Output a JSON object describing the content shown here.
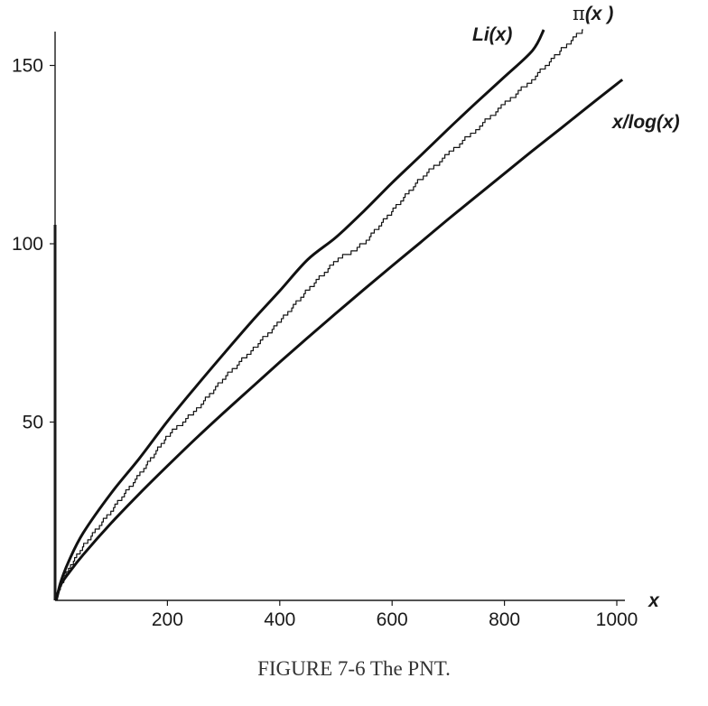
{
  "caption": "FIGURE 7-6  The PNT.",
  "chart_data": {
    "type": "line",
    "title": "",
    "xlabel": "x",
    "ylabel": "",
    "xlim": [
      0,
      1000
    ],
    "ylim": [
      0,
      160
    ],
    "x_ticks": [
      200,
      400,
      600,
      800,
      1000
    ],
    "x_tick_labels": [
      "200",
      "400",
      "600",
      "800",
      "1000"
    ],
    "y_ticks": [
      50,
      100,
      150
    ],
    "y_tick_labels": [
      "50",
      "100",
      "150"
    ],
    "series": [
      {
        "name": "Li(x)",
        "label_text": "Li(x)",
        "style": "smooth",
        "x": [
          2,
          10,
          25,
          50,
          100,
          150,
          200,
          250,
          300,
          350,
          400,
          450,
          500,
          550,
          600,
          650,
          700,
          750,
          800,
          850,
          870
        ],
        "values": [
          0,
          5.1,
          11.2,
          18.9,
          30.1,
          39.8,
          50.2,
          59.8,
          69.1,
          78.2,
          86.8,
          95.6,
          101.8,
          109.2,
          117.1,
          124.6,
          132.2,
          139.6,
          146.8,
          154.2,
          160
        ]
      },
      {
        "name": "π(x)",
        "label_text": "π(x )",
        "style": "step",
        "x": [
          2,
          10,
          25,
          50,
          100,
          150,
          200,
          250,
          300,
          350,
          400,
          450,
          500,
          550,
          600,
          650,
          700,
          750,
          800,
          850,
          900,
          940
        ],
        "values": [
          1,
          4,
          9,
          15,
          25,
          35,
          46,
          53,
          62,
          70,
          78,
          87,
          95,
          100,
          109,
          118,
          125,
          132,
          139,
          146,
          154,
          160
        ]
      },
      {
        "name": "x/log(x)",
        "label_text": "x/log(x)",
        "style": "smooth",
        "x": [
          2,
          10,
          25,
          50,
          100,
          150,
          200,
          250,
          300,
          350,
          400,
          450,
          500,
          550,
          600,
          650,
          700,
          750,
          800,
          850,
          900,
          950,
          1000,
          1010
        ],
        "values": [
          0,
          4.3,
          7.8,
          12.8,
          21.7,
          29.9,
          37.7,
          45.3,
          52.6,
          59.7,
          66.8,
          73.7,
          80.5,
          87.2,
          93.8,
          100.3,
          106.9,
          113.3,
          119.7,
          126.1,
          132.3,
          138.6,
          144.8,
          146
        ]
      }
    ],
    "annotations": [
      "Li(x)",
      "π(x )",
      "x/log(x)"
    ]
  }
}
